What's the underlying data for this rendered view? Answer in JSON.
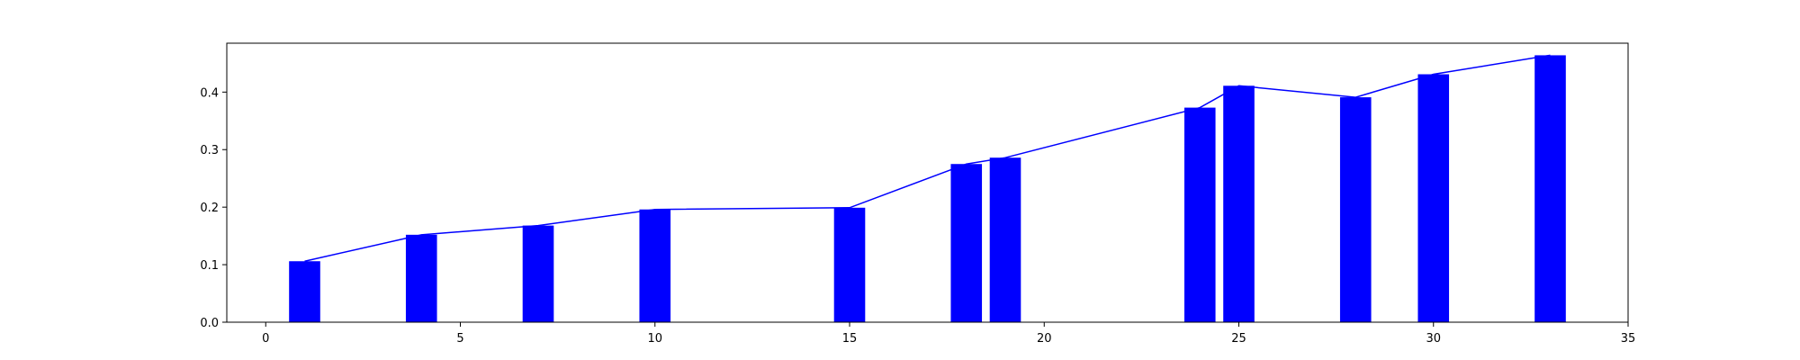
{
  "chart_data": {
    "type": "bar",
    "x": [
      1,
      4,
      7,
      10,
      15,
      18,
      19,
      24,
      25,
      28,
      30,
      33
    ],
    "values": [
      0.106,
      0.152,
      0.168,
      0.196,
      0.199,
      0.275,
      0.286,
      0.373,
      0.411,
      0.391,
      0.431,
      0.464
    ],
    "line_values": [
      0.106,
      0.152,
      0.168,
      0.196,
      0.199,
      0.275,
      0.286,
      0.373,
      0.411,
      0.391,
      0.431,
      0.464
    ],
    "bar_width": 0.8,
    "xlim": [
      -1,
      35
    ],
    "ylim": [
      0,
      0.485
    ],
    "xticks": [
      0,
      5,
      10,
      15,
      20,
      25,
      30,
      35
    ],
    "xtick_labels": [
      "0",
      "5",
      "10",
      "15",
      "20",
      "25",
      "30",
      "35"
    ],
    "yticks": [
      0.0,
      0.1,
      0.2,
      0.3,
      0.4
    ],
    "ytick_labels": [
      "0.0",
      "0.1",
      "0.2",
      "0.3",
      "0.4"
    ],
    "title": "",
    "xlabel": "",
    "ylabel": "",
    "grid": false,
    "bar_color": "#0000ff",
    "line_color": "#0000ff"
  }
}
